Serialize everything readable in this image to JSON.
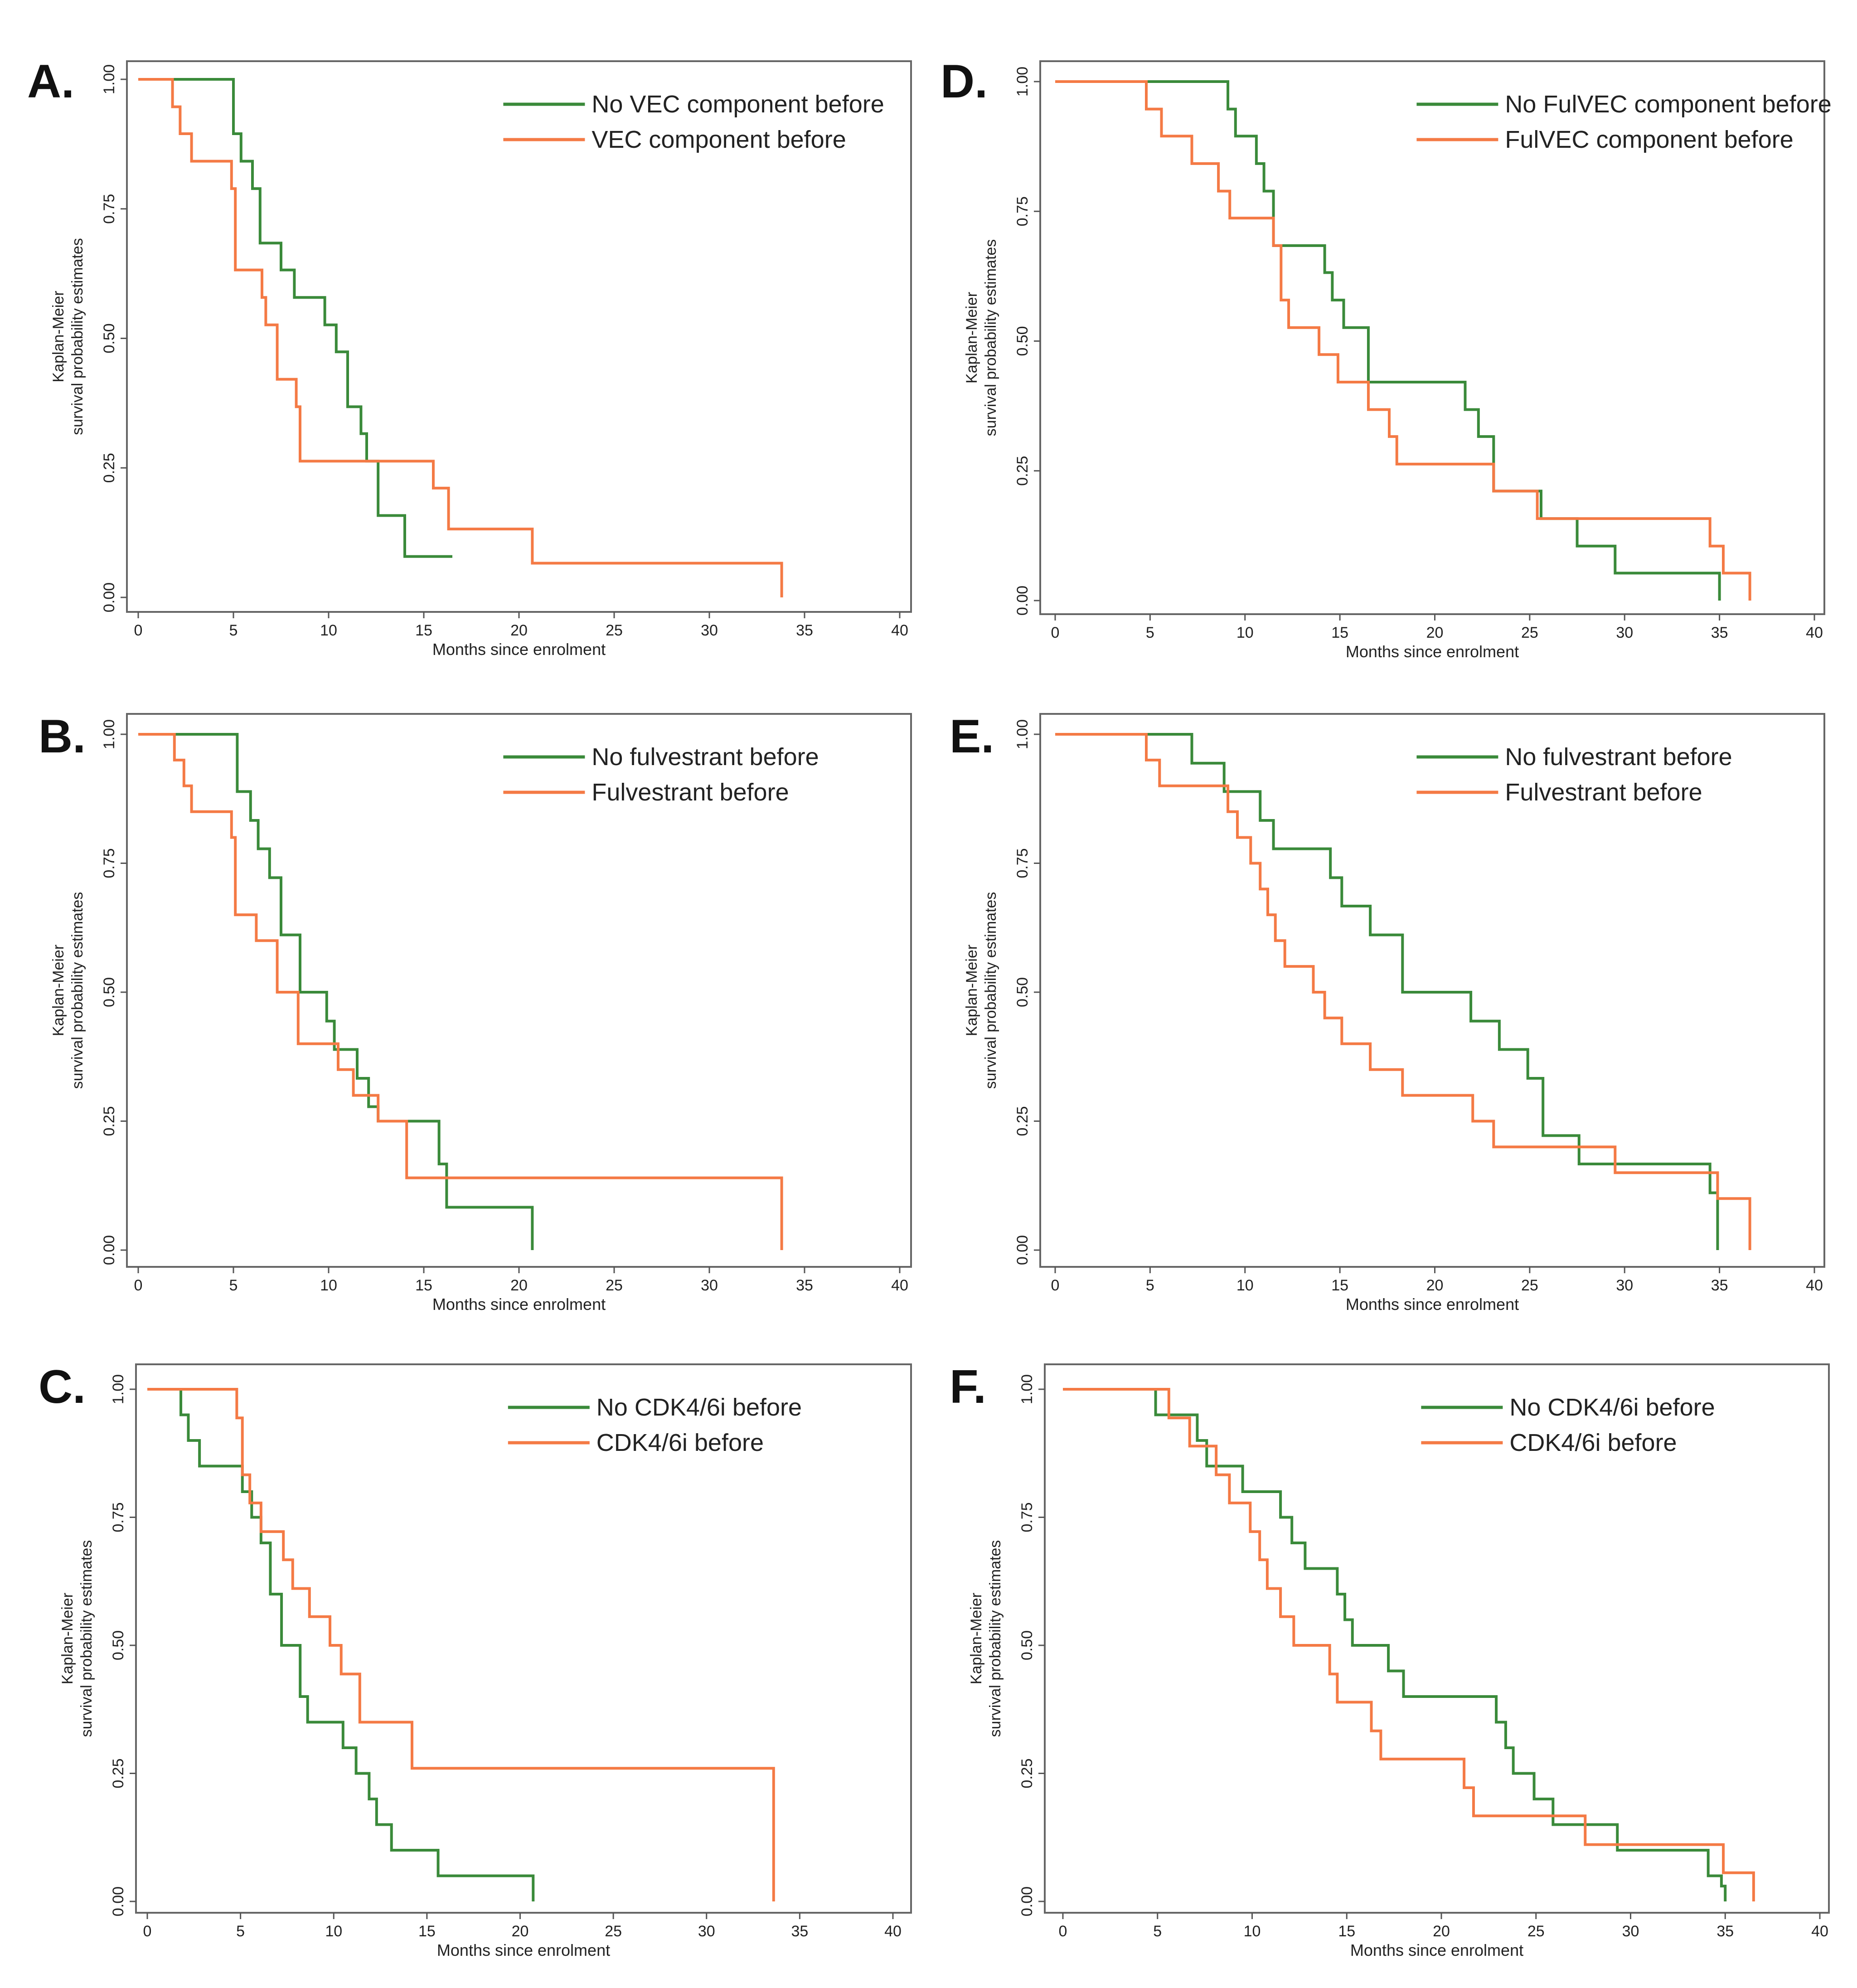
{
  "figure": {
    "description_panels": [
      "A.",
      "D.",
      "B.",
      "E.",
      "C.",
      "F."
    ]
  },
  "colors": {
    "series_no": "#3a8a3a",
    "series_yes": "#f47a45",
    "axis": "#555555",
    "frame": "#666666"
  },
  "chart_data": [
    {
      "panel": "A.",
      "type": "line",
      "step": true,
      "xlabel": "Months since enrolment",
      "ylabel": [
        "Kaplan-Meier",
        "survival probability estimates"
      ],
      "xlim": [
        0,
        40
      ],
      "ylim": [
        0,
        1
      ],
      "xticks": [
        "0",
        "5",
        "10",
        "15",
        "20",
        "25",
        "30",
        "35",
        "40"
      ],
      "yticks": [
        "0.00",
        "0.25",
        "0.50",
        "0.75",
        "1.00"
      ],
      "legend_position": "top-right",
      "series": [
        {
          "name": "No VEC component before",
          "color": "#3a8a3a",
          "x": [
            0,
            5,
            5.4,
            6,
            6.4,
            7.5,
            8.2,
            9.8,
            10.4,
            11,
            11.7,
            12,
            12.6,
            14,
            16.5
          ],
          "y": [
            1,
            0.895,
            0.842,
            0.789,
            0.684,
            0.632,
            0.579,
            0.526,
            0.474,
            0.368,
            0.316,
            0.263,
            0.158,
            0.079,
            0.079
          ]
        },
        {
          "name": "VEC component before",
          "color": "#f47a45",
          "x": [
            0,
            1.8,
            2.2,
            2.8,
            4.9,
            5.1,
            6.5,
            6.7,
            7.3,
            8.3,
            8.5,
            15.5,
            16.3,
            20.7,
            33.8,
            33.8
          ],
          "y": [
            1,
            0.947,
            0.895,
            0.842,
            0.789,
            0.632,
            0.579,
            0.526,
            0.421,
            0.368,
            0.263,
            0.211,
            0.132,
            0.066,
            0.066,
            0
          ]
        }
      ]
    },
    {
      "panel": "D.",
      "type": "line",
      "step": true,
      "xlabel": "Months since enrolment",
      "ylabel": [
        "Kaplan-Meier",
        "survival probability estimates"
      ],
      "xlim": [
        0,
        40
      ],
      "ylim": [
        0,
        1
      ],
      "xticks": [
        "0",
        "5",
        "10",
        "15",
        "20",
        "25",
        "30",
        "35",
        "40"
      ],
      "yticks": [
        "0.00",
        "0.25",
        "0.50",
        "0.75",
        "1.00"
      ],
      "legend_position": "top-right",
      "series": [
        {
          "name": "No FulVEC component before",
          "color": "#3a8a3a",
          "x": [
            0,
            9.1,
            9.5,
            10.6,
            11,
            11.5,
            14.2,
            14.6,
            15.2,
            16.5,
            21.6,
            22.3,
            23.1,
            25.6,
            27.5,
            29.5,
            35,
            35
          ],
          "y": [
            1,
            0.947,
            0.895,
            0.842,
            0.789,
            0.684,
            0.632,
            0.579,
            0.526,
            0.421,
            0.368,
            0.316,
            0.211,
            0.158,
            0.105,
            0.053,
            0.053,
            0
          ]
        },
        {
          "name": "FulVEC component before",
          "color": "#f47a45",
          "x": [
            0,
            4.8,
            5.6,
            7.2,
            8.6,
            9.2,
            11.5,
            11.9,
            12.3,
            13.9,
            14.9,
            16.5,
            17.6,
            18,
            23.1,
            25.4,
            34.5,
            35.2,
            36.6
          ],
          "y": [
            1,
            0.947,
            0.895,
            0.842,
            0.789,
            0.737,
            0.684,
            0.579,
            0.526,
            0.474,
            0.421,
            0.368,
            0.316,
            0.263,
            0.211,
            0.158,
            0.105,
            0.053,
            0
          ]
        }
      ]
    },
    {
      "panel": "B.",
      "type": "line",
      "step": true,
      "xlabel": "Months since enrolment",
      "ylabel": [
        "Kaplan-Meier",
        "survival probability estimates"
      ],
      "xlim": [
        0,
        40
      ],
      "ylim": [
        0,
        1
      ],
      "xticks": [
        "0",
        "5",
        "10",
        "15",
        "20",
        "25",
        "30",
        "35",
        "40"
      ],
      "yticks": [
        "0.00",
        "0.25",
        "0.50",
        "0.75",
        "1.00"
      ],
      "legend_position": "top-right",
      "series": [
        {
          "name": "No fulvestrant before",
          "color": "#3a8a3a",
          "x": [
            0,
            5.2,
            5.9,
            6.3,
            6.9,
            7.5,
            8.5,
            9.9,
            10.3,
            11.5,
            12.1,
            12.6,
            15.8,
            16.2,
            20.7,
            20.7
          ],
          "y": [
            1,
            0.889,
            0.833,
            0.778,
            0.722,
            0.611,
            0.5,
            0.444,
            0.389,
            0.333,
            0.278,
            0.25,
            0.167,
            0.083,
            0.083,
            0
          ]
        },
        {
          "name": "Fulvestrant before",
          "color": "#f47a45",
          "x": [
            0,
            1.9,
            2.4,
            2.8,
            4.9,
            5.1,
            6.2,
            7.3,
            8.4,
            10.5,
            11.3,
            12.6,
            14.1,
            33.8,
            33.8
          ],
          "y": [
            1,
            0.95,
            0.9,
            0.85,
            0.8,
            0.65,
            0.6,
            0.5,
            0.4,
            0.35,
            0.3,
            0.25,
            0.14,
            0.14,
            0
          ]
        }
      ]
    },
    {
      "panel": "E.",
      "type": "line",
      "step": true,
      "xlabel": "Months since enrolment",
      "ylabel": [
        "Kaplan-Meier",
        "survival probability estimates"
      ],
      "xlim": [
        0,
        40
      ],
      "ylim": [
        0,
        1
      ],
      "xticks": [
        "0",
        "5",
        "10",
        "15",
        "20",
        "25",
        "30",
        "35",
        "40"
      ],
      "yticks": [
        "0.00",
        "0.25",
        "0.50",
        "0.75",
        "1.00"
      ],
      "legend_position": "top-right",
      "series": [
        {
          "name": "No fulvestrant before",
          "color": "#3a8a3a",
          "x": [
            0,
            7.2,
            8.9,
            10.8,
            11.5,
            14.5,
            15.1,
            16.6,
            18.3,
            21.9,
            23.4,
            24.9,
            25.7,
            27.6,
            34.5,
            34.9
          ],
          "y": [
            1,
            0.944,
            0.889,
            0.833,
            0.778,
            0.722,
            0.667,
            0.611,
            0.5,
            0.444,
            0.389,
            0.333,
            0.222,
            0.167,
            0.111,
            0
          ]
        },
        {
          "name": "Fulvestrant before",
          "color": "#f47a45",
          "x": [
            0,
            4.8,
            5.5,
            9.1,
            9.6,
            10.3,
            10.8,
            11.2,
            11.6,
            12.1,
            13.6,
            14.2,
            15.1,
            16.6,
            18.3,
            22,
            23.1,
            29.5,
            34.9,
            36.6
          ],
          "y": [
            1,
            0.95,
            0.9,
            0.85,
            0.8,
            0.75,
            0.7,
            0.65,
            0.6,
            0.55,
            0.5,
            0.45,
            0.4,
            0.35,
            0.3,
            0.25,
            0.2,
            0.15,
            0.1,
            0
          ]
        }
      ]
    },
    {
      "panel": "C.",
      "type": "line",
      "step": true,
      "xlabel": "Months since enrolment",
      "ylabel": [
        "Kaplan-Meier",
        "survival probability estimates"
      ],
      "xlim": [
        0,
        40
      ],
      "ylim": [
        0,
        1
      ],
      "xticks": [
        "0",
        "5",
        "10",
        "15",
        "20",
        "25",
        "30",
        "35",
        "40"
      ],
      "yticks": [
        "0.00",
        "0.25",
        "0.50",
        "0.75",
        "1.00"
      ],
      "legend_position": "top-right",
      "series": [
        {
          "name": "No CDK4/6i before",
          "color": "#3a8a3a",
          "x": [
            0,
            1.8,
            2.2,
            2.8,
            5.1,
            5.6,
            6.1,
            6.6,
            7.2,
            8.2,
            8.6,
            10.5,
            11.2,
            11.9,
            12.3,
            13.1,
            15.6,
            16,
            20.7,
            20.7
          ],
          "y": [
            1,
            0.95,
            0.9,
            0.85,
            0.8,
            0.75,
            0.7,
            0.6,
            0.5,
            0.4,
            0.35,
            0.3,
            0.25,
            0.2,
            0.15,
            0.1,
            0.05,
            0.05,
            0.05,
            0
          ]
        },
        {
          "name": "CDK4/6i before",
          "color": "#f47a45",
          "x": [
            0,
            4.8,
            5.1,
            5.5,
            6.1,
            7.3,
            7.8,
            8.7,
            9.8,
            10.4,
            11.4,
            14.2,
            33.6,
            33.6
          ],
          "y": [
            1,
            0.944,
            0.833,
            0.778,
            0.722,
            0.667,
            0.611,
            0.556,
            0.5,
            0.444,
            0.35,
            0.26,
            0.26,
            0
          ]
        }
      ]
    },
    {
      "panel": "F.",
      "type": "line",
      "step": true,
      "xlabel": "Months since enrolment",
      "ylabel": [
        "Kaplan-Meier",
        "survival probability estimates"
      ],
      "xlim": [
        0,
        40
      ],
      "ylim": [
        0,
        1
      ],
      "xticks": [
        "0",
        "5",
        "10",
        "15",
        "20",
        "25",
        "30",
        "35",
        "40"
      ],
      "yticks": [
        "0.00",
        "0.25",
        "0.50",
        "0.75",
        "1.00"
      ],
      "legend_position": "top-right",
      "series": [
        {
          "name": "No CDK4/6i before",
          "color": "#3a8a3a",
          "x": [
            0,
            4.9,
            7.1,
            7.6,
            9.5,
            11.5,
            12.1,
            12.8,
            14.5,
            14.9,
            15.3,
            17.2,
            18,
            22.9,
            23.4,
            23.8,
            24.9,
            25.9,
            29.3,
            34.1,
            34.8,
            35
          ],
          "y": [
            1,
            0.95,
            0.9,
            0.85,
            0.8,
            0.75,
            0.7,
            0.65,
            0.6,
            0.55,
            0.5,
            0.45,
            0.4,
            0.35,
            0.3,
            0.25,
            0.2,
            0.15,
            0.1,
            0.05,
            0.03,
            0
          ]
        },
        {
          "name": "CDK4/6i before",
          "color": "#f47a45",
          "x": [
            0,
            5.6,
            6.7,
            8.1,
            8.8,
            9.9,
            10.4,
            10.8,
            11.5,
            12.2,
            14.1,
            14.5,
            16.3,
            16.8,
            21.2,
            21.7,
            27.6,
            34.9,
            36.5
          ],
          "y": [
            1,
            0.944,
            0.889,
            0.833,
            0.778,
            0.722,
            0.667,
            0.611,
            0.556,
            0.5,
            0.444,
            0.389,
            0.333,
            0.278,
            0.222,
            0.167,
            0.111,
            0.056,
            0
          ]
        }
      ]
    }
  ]
}
